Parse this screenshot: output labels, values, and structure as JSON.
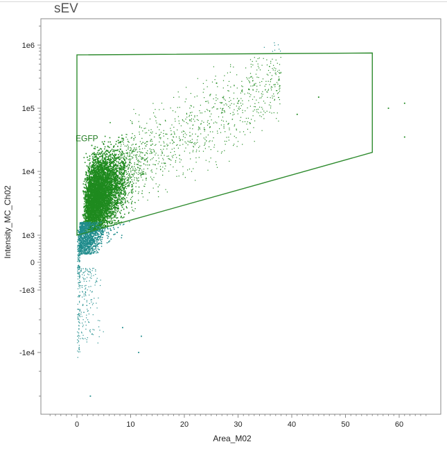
{
  "window": {
    "title": "sEV"
  },
  "chart_data": {
    "type": "scatter",
    "title": "sEV",
    "xlabel": "Area_M02",
    "ylabel": "Intensity_MC_Ch02",
    "x_ticks": [
      0,
      10,
      20,
      30,
      40,
      50,
      60
    ],
    "xlim": [
      -6.5,
      67
    ],
    "y_scale": "biexponential",
    "y_ticks": [
      {
        "value": 1000000,
        "label": "1e6"
      },
      {
        "value": 100000,
        "label": "1e5"
      },
      {
        "value": 10000,
        "label": "1e4"
      },
      {
        "value": 1000,
        "label": "1e3"
      },
      {
        "value": 0,
        "label": "0"
      },
      {
        "value": -1000,
        "label": "-1e3"
      },
      {
        "value": -10000,
        "label": "-1e4"
      }
    ],
    "grid": false,
    "colors": {
      "inside_gate": "#1f8a1f",
      "outside_gate": "#1f8c8c",
      "gate": "#2e8b2e",
      "frame": "#888888"
    },
    "gate": {
      "name": "EGFP",
      "vertices": [
        [
          0,
          1000
        ],
        [
          0,
          700000
        ],
        [
          55,
          750000
        ],
        [
          55,
          20000
        ]
      ]
    },
    "population": {
      "approx_events": 9000,
      "main_cloud": "Area 1–20, Intensity 1e3–1e5, densest near Area 3–6 at ~3e3–1e4",
      "outliers": [
        [
          26,
          250000
        ],
        [
          32,
          200000
        ],
        [
          45,
          150000
        ],
        [
          41,
          80000
        ],
        [
          58,
          100000
        ],
        [
          61,
          120000
        ],
        [
          61,
          35000
        ],
        [
          2.5,
          -50000
        ],
        [
          8.5,
          -4000
        ],
        [
          11.5,
          -10000
        ],
        [
          12,
          -5500
        ]
      ]
    }
  }
}
